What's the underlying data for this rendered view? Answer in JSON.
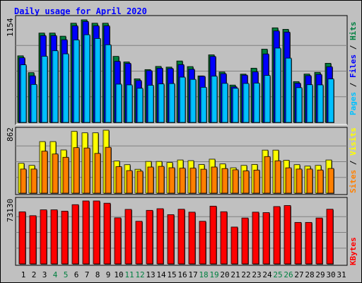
{
  "chart_data": [
    {
      "type": "bar",
      "title": "Daily usage for April 2020",
      "ylabel_max": "1154",
      "legend": [
        {
          "name": "Pages",
          "color": "#00c0ff"
        },
        {
          "name": "Files",
          "color": "#0000ff"
        },
        {
          "name": "Hits",
          "color": "#008040"
        }
      ],
      "categories": [
        "1",
        "2",
        "3",
        "4",
        "5",
        "6",
        "7",
        "8",
        "9",
        "10",
        "11",
        "12",
        "13",
        "14",
        "15",
        "16",
        "17",
        "18",
        "19",
        "20",
        "21",
        "22",
        "23",
        "24",
        "25",
        "26",
        "27",
        "28",
        "29",
        "30",
        "31"
      ],
      "weekend_days": [
        "4",
        "5",
        "11",
        "12",
        "18",
        "19",
        "25",
        "26"
      ],
      "ylim": [
        0,
        1154
      ],
      "series": [
        {
          "name": "Hits",
          "values": [
            749,
            560,
            1005,
            1005,
            970,
            1116,
            1154,
            1116,
            1116,
            743,
            680,
            490,
            594,
            630,
            622,
            691,
            628,
            523,
            760,
            567,
            420,
            543,
            610,
            824,
            1064,
            1047,
            459,
            544,
            563,
            665,
            0
          ]
        },
        {
          "name": "Files",
          "values": [
            727,
            524,
            976,
            976,
            930,
            1086,
            1135,
            1086,
            1086,
            687,
            664,
            471,
            582,
            610,
            606,
            650,
            598,
            519,
            742,
            548,
            400,
            532,
            569,
            770,
            1029,
            1016,
            441,
            526,
            540,
            626,
            0
          ]
        },
        {
          "name": "Pages",
          "values": [
            648,
            427,
            744,
            806,
            771,
            928,
            986,
            944,
            873,
            430,
            422,
            384,
            418,
            433,
            437,
            509,
            484,
            395,
            520,
            439,
            384,
            438,
            442,
            528,
            836,
            723,
            391,
            424,
            422,
            489,
            0
          ]
        }
      ]
    },
    {
      "type": "bar",
      "ylabel_max": "862",
      "legend": [
        {
          "name": "Sites",
          "color": "#ff8000"
        },
        {
          "name": "Visits",
          "color": "#ffff00"
        }
      ],
      "categories": [
        "1",
        "2",
        "3",
        "4",
        "5",
        "6",
        "7",
        "8",
        "9",
        "10",
        "11",
        "12",
        "13",
        "14",
        "15",
        "16",
        "17",
        "18",
        "19",
        "20",
        "21",
        "22",
        "23",
        "24",
        "25",
        "26",
        "27",
        "28",
        "29",
        "30",
        "31"
      ],
      "ylim": [
        0,
        862
      ],
      "series": [
        {
          "name": "Visits",
          "values": [
            409,
            380,
            706,
            706,
            591,
            846,
            826,
            826,
            862,
            440,
            390,
            327,
            434,
            434,
            420,
            454,
            445,
            392,
            465,
            400,
            347,
            380,
            393,
            589,
            589,
            450,
            390,
            370,
            380,
            454,
            0
          ]
        },
        {
          "name": "Sites",
          "values": [
            330,
            330,
            575,
            536,
            491,
            623,
            618,
            544,
            628,
            363,
            309,
            302,
            358,
            367,
            348,
            342,
            342,
            328,
            358,
            337,
            320,
            305,
            316,
            501,
            443,
            347,
            330,
            330,
            317,
            338,
            0
          ]
        }
      ]
    },
    {
      "type": "bar",
      "ylabel_max": "73130",
      "legend": [
        {
          "name": "KBytes",
          "color": "#ff0000"
        }
      ],
      "categories": [
        "1",
        "2",
        "3",
        "4",
        "5",
        "6",
        "7",
        "8",
        "9",
        "10",
        "11",
        "12",
        "13",
        "14",
        "15",
        "16",
        "17",
        "18",
        "19",
        "20",
        "21",
        "22",
        "23",
        "24",
        "25",
        "26",
        "27",
        "28",
        "29",
        "30",
        "31"
      ],
      "ylim": [
        0,
        73130
      ],
      "series": [
        {
          "name": "KBytes",
          "values": [
            60500,
            56000,
            62800,
            62800,
            61300,
            68800,
            73130,
            73130,
            70500,
            53500,
            63300,
            49500,
            62200,
            64100,
            57200,
            63500,
            60100,
            49500,
            67100,
            60600,
            42800,
            53300,
            60100,
            59600,
            66600,
            67800,
            48200,
            48200,
            53300,
            63500,
            0
          ]
        }
      ]
    }
  ]
}
